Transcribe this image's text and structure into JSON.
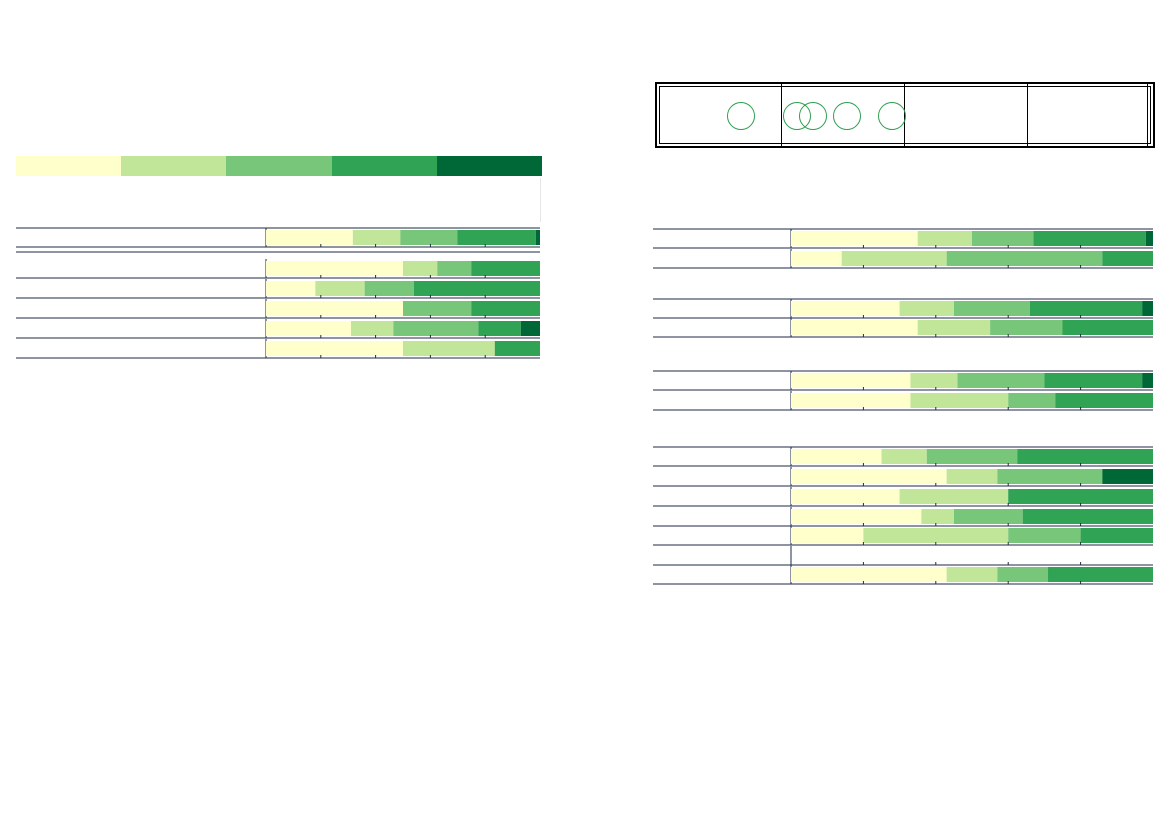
{
  "legend": {
    "colors": [
      "#ffffcc",
      "#c2e699",
      "#78c679",
      "#31a354",
      "#006837"
    ]
  },
  "chart_data": [
    {
      "type": "bar",
      "orientation": "horizontal",
      "stacked": true,
      "normalized": true,
      "grid": true,
      "rows": [
        {
          "segments": [
            32,
            17.5,
            21,
            29,
            1.5
          ]
        },
        {
          "segments": []
        },
        {
          "segments": [
            50,
            12.5,
            12.5,
            25,
            0
          ]
        },
        {
          "segments": [
            18,
            18,
            18,
            46,
            0
          ]
        },
        {
          "segments": [
            50,
            0,
            25,
            25,
            0
          ]
        },
        {
          "segments": [
            31,
            15.5,
            31,
            15.5,
            7
          ]
        },
        {
          "segments": [
            50,
            33.5,
            0,
            16.5,
            0
          ]
        }
      ]
    },
    {
      "type": "bar",
      "orientation": "horizontal",
      "stacked": true,
      "normalized": true,
      "grid": true,
      "groups": [
        {
          "rows": [
            {
              "segments": [
                35,
                15,
                17,
                31,
                2
              ]
            },
            {
              "segments": [
                14,
                29,
                43,
                14,
                0
              ]
            }
          ]
        },
        {
          "rows": [
            {
              "segments": [
                30,
                15,
                21,
                31,
                3
              ]
            },
            {
              "segments": [
                35,
                20,
                20,
                25,
                0
              ]
            }
          ]
        },
        {
          "rows": [
            {
              "segments": [
                33,
                13,
                24,
                27,
                3
              ]
            },
            {
              "segments": [
                33,
                27,
                13,
                27,
                0
              ]
            }
          ]
        },
        {
          "rows": [
            {
              "segments": [
                25,
                12.5,
                25,
                37.5,
                0
              ]
            },
            {
              "segments": [
                43,
                14,
                29,
                0,
                14
              ]
            },
            {
              "segments": [
                30,
                30,
                0,
                40,
                0
              ]
            },
            {
              "segments": [
                36,
                9,
                19,
                36,
                0
              ]
            },
            {
              "segments": [
                20,
                40,
                20,
                20,
                0
              ]
            },
            {
              "segments": []
            },
            {
              "segments": [
                43,
                14,
                14,
                29,
                0
              ]
            }
          ]
        }
      ]
    }
  ]
}
